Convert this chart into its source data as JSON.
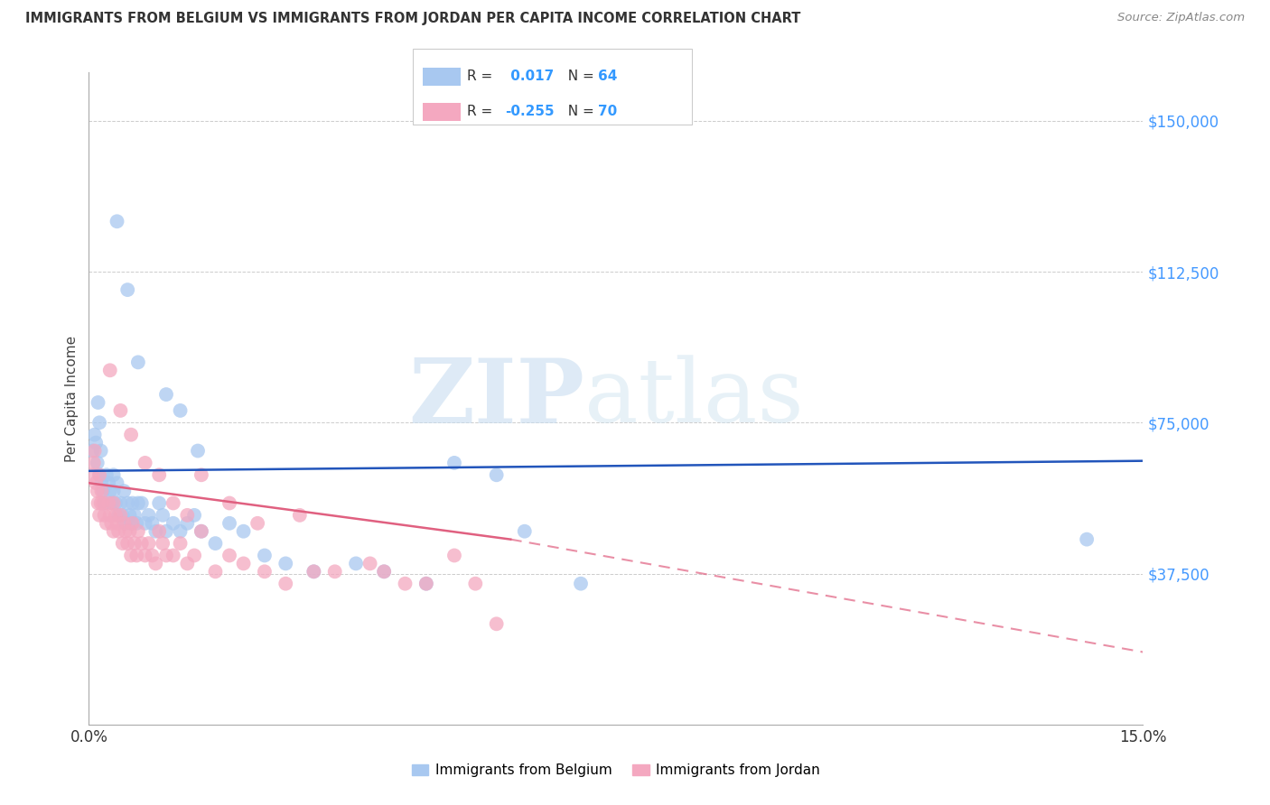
{
  "title": "IMMIGRANTS FROM BELGIUM VS IMMIGRANTS FROM JORDAN PER CAPITA INCOME CORRELATION CHART",
  "source": "Source: ZipAtlas.com",
  "ylabel": "Per Capita Income",
  "xlim": [
    0.0,
    15.0
  ],
  "ylim": [
    0,
    162000
  ],
  "belgium_color": "#a8c8f0",
  "jordan_color": "#f4a8c0",
  "belgium_line_color": "#2255bb",
  "jordan_line_color": "#e06080",
  "watermark_zip": "ZIP",
  "watermark_atlas": "atlas",
  "background_color": "#ffffff",
  "grid_color": "#cccccc",
  "ytick_vals": [
    37500,
    75000,
    112500,
    150000
  ],
  "ytick_labels": [
    "$37,500",
    "$75,000",
    "$112,500",
    "$150,000"
  ],
  "belgium_x": [
    0.05,
    0.08,
    0.1,
    0.12,
    0.13,
    0.15,
    0.15,
    0.17,
    0.18,
    0.2,
    0.22,
    0.25,
    0.28,
    0.3,
    0.32,
    0.35,
    0.35,
    0.38,
    0.4,
    0.42,
    0.45,
    0.48,
    0.5,
    0.52,
    0.55,
    0.58,
    0.6,
    0.62,
    0.65,
    0.68,
    0.7,
    0.75,
    0.8,
    0.85,
    0.9,
    0.95,
    1.0,
    1.05,
    1.1,
    1.2,
    1.3,
    1.4,
    1.5,
    1.6,
    1.8,
    2.0,
    2.2,
    2.5,
    2.8,
    3.2,
    3.8,
    4.2,
    4.8,
    5.2,
    5.8,
    6.2,
    7.0,
    0.4,
    0.55,
    0.7,
    1.1,
    1.3,
    1.55,
    14.2
  ],
  "belgium_y": [
    68000,
    72000,
    70000,
    65000,
    80000,
    62000,
    75000,
    68000,
    60000,
    58000,
    55000,
    62000,
    60000,
    58000,
    55000,
    62000,
    58000,
    55000,
    60000,
    52000,
    55000,
    52000,
    58000,
    50000,
    55000,
    52000,
    50000,
    55000,
    52000,
    50000,
    55000,
    55000,
    50000,
    52000,
    50000,
    48000,
    55000,
    52000,
    48000,
    50000,
    48000,
    50000,
    52000,
    48000,
    45000,
    50000,
    48000,
    42000,
    40000,
    38000,
    40000,
    38000,
    35000,
    65000,
    62000,
    48000,
    35000,
    125000,
    108000,
    90000,
    82000,
    78000,
    68000,
    46000
  ],
  "jordan_x": [
    0.05,
    0.07,
    0.08,
    0.1,
    0.12,
    0.13,
    0.15,
    0.15,
    0.17,
    0.18,
    0.2,
    0.22,
    0.25,
    0.28,
    0.3,
    0.32,
    0.35,
    0.35,
    0.38,
    0.4,
    0.42,
    0.45,
    0.48,
    0.5,
    0.52,
    0.55,
    0.58,
    0.6,
    0.62,
    0.65,
    0.68,
    0.7,
    0.75,
    0.8,
    0.85,
    0.9,
    0.95,
    1.0,
    1.05,
    1.1,
    1.2,
    1.3,
    1.4,
    1.5,
    1.6,
    1.8,
    2.0,
    2.2,
    2.5,
    2.8,
    3.2,
    3.5,
    4.0,
    4.2,
    4.8,
    5.2,
    5.5,
    0.3,
    0.45,
    0.6,
    0.8,
    1.0,
    1.2,
    1.4,
    1.6,
    2.0,
    2.4,
    3.0,
    4.5,
    5.8
  ],
  "jordan_y": [
    62000,
    65000,
    68000,
    60000,
    58000,
    55000,
    62000,
    52000,
    55000,
    58000,
    55000,
    52000,
    50000,
    55000,
    52000,
    50000,
    55000,
    48000,
    52000,
    50000,
    48000,
    52000,
    45000,
    50000,
    48000,
    45000,
    48000,
    42000,
    50000,
    45000,
    42000,
    48000,
    45000,
    42000,
    45000,
    42000,
    40000,
    48000,
    45000,
    42000,
    42000,
    45000,
    40000,
    42000,
    48000,
    38000,
    42000,
    40000,
    38000,
    35000,
    38000,
    38000,
    40000,
    38000,
    35000,
    42000,
    35000,
    88000,
    78000,
    72000,
    65000,
    62000,
    55000,
    52000,
    62000,
    55000,
    50000,
    52000,
    35000,
    25000
  ]
}
